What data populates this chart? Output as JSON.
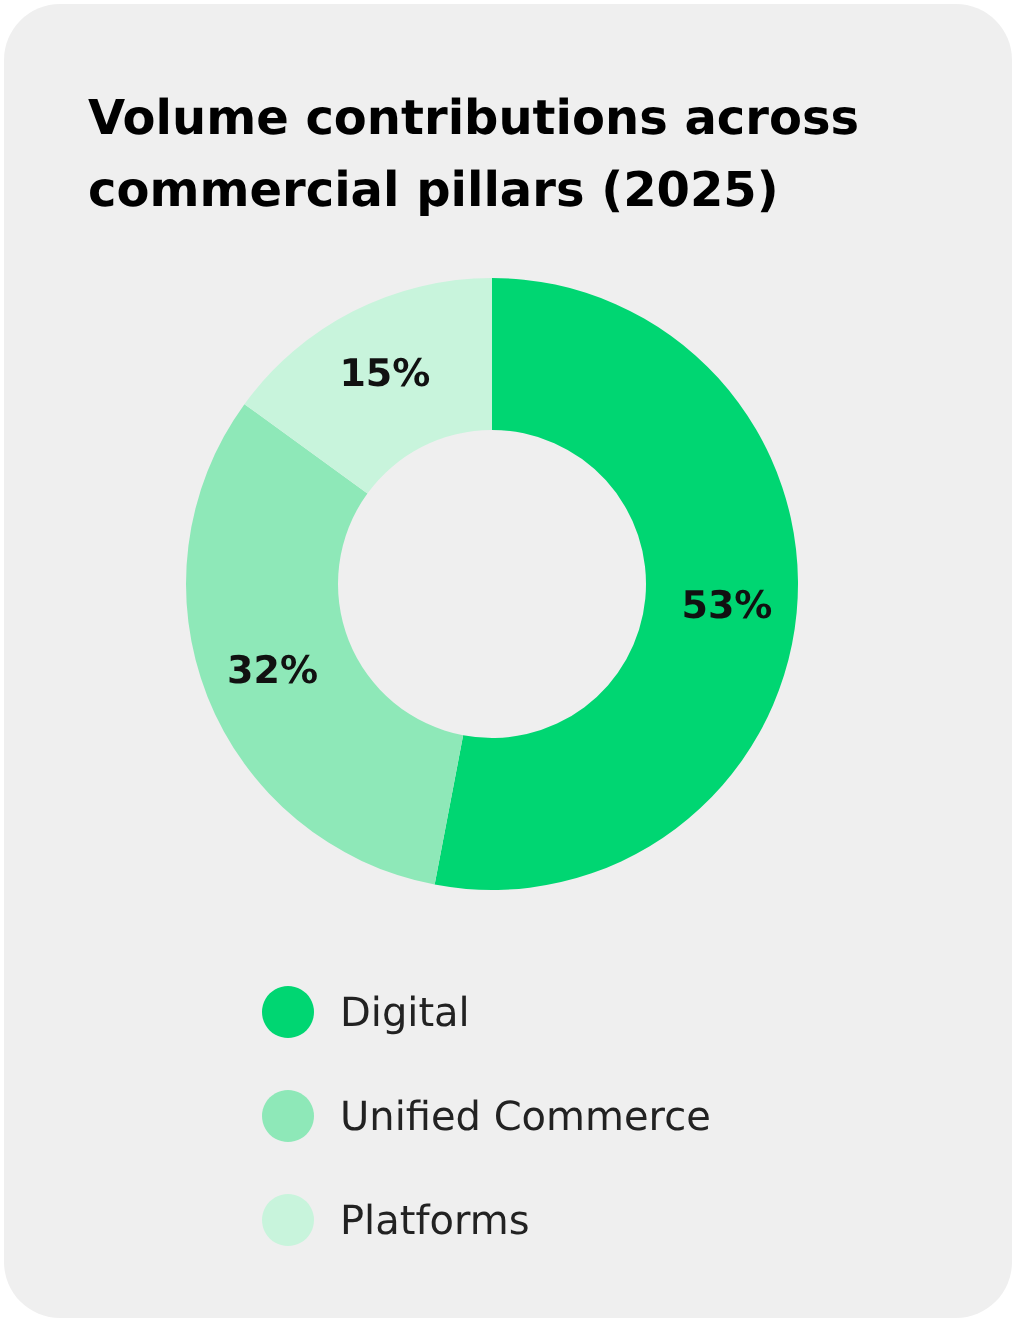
{
  "chart_data": {
    "type": "donut",
    "title": "Volume contributions across commercial pillars (2025)",
    "categories": [
      "Digital",
      "Unified Commerce",
      "Platforms"
    ],
    "values": [
      53,
      32,
      15
    ],
    "colors": [
      "#00d672",
      "#8ee8b8",
      "#c8f4dc"
    ],
    "value_labels": [
      "53%",
      "32%",
      "15%"
    ],
    "legend": "bottom"
  }
}
